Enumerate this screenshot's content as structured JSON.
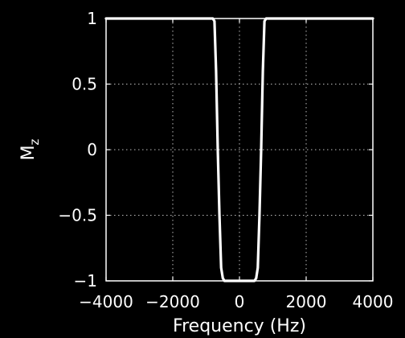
{
  "chart_data": {
    "type": "line",
    "title": "",
    "xlabel": "Frequency (Hz)",
    "ylabel": {
      "main": "M",
      "sub": "z"
    },
    "xlim": [
      -4000,
      4000
    ],
    "ylim": [
      -1,
      1
    ],
    "grid": true,
    "x_ticks": [
      {
        "value": -4000,
        "label": "−4000"
      },
      {
        "value": -2000,
        "label": "−2000"
      },
      {
        "value": 0,
        "label": "0"
      },
      {
        "value": 2000,
        "label": "2000"
      },
      {
        "value": 4000,
        "label": "4000"
      }
    ],
    "y_ticks": [
      {
        "value": -1,
        "label": "−1"
      },
      {
        "value": -0.5,
        "label": "−0.5"
      },
      {
        "value": 0,
        "label": "0"
      },
      {
        "value": 0.5,
        "label": "0.5"
      },
      {
        "value": 1,
        "label": "1"
      }
    ],
    "series": [
      {
        "color": "#ffffff",
        "x": [
          -4000,
          -800,
          -750,
          -700,
          -650,
          -600,
          -550,
          -500,
          -450,
          -400,
          400,
          450,
          500,
          550,
          600,
          650,
          700,
          750,
          800,
          4000
        ],
        "y": [
          1,
          1,
          0.98,
          0.6,
          0.0,
          -0.5,
          -0.9,
          -0.98,
          -1,
          -1,
          -1,
          -1,
          -0.98,
          -0.9,
          -0.5,
          0.0,
          0.6,
          0.98,
          1,
          1
        ]
      }
    ]
  }
}
